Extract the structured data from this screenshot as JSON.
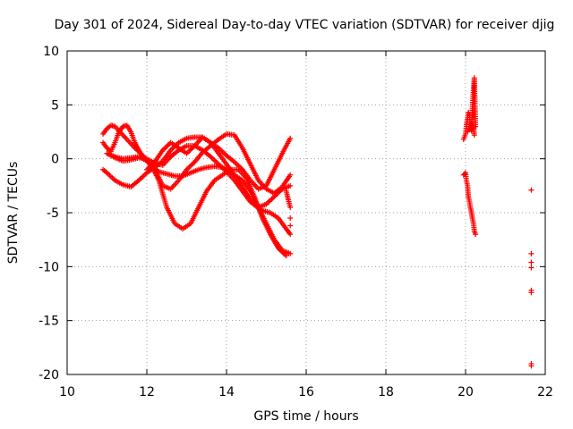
{
  "chart_data": {
    "type": "scatter",
    "title": "Day 301 of 2024, Sidereal Day-to-day VTEC variation (SDTVAR) for receiver djig",
    "xlabel": "GPS time / hours",
    "ylabel": "SDTVAR / TECUs",
    "xlim": [
      10,
      22
    ],
    "ylim": [
      -20,
      10
    ],
    "xticks": [
      10,
      12,
      14,
      16,
      18,
      20,
      22
    ],
    "yticks": [
      -20,
      -15,
      -10,
      -5,
      0,
      5,
      10
    ],
    "grid": true,
    "marker": "+",
    "color": "#ff0000",
    "series": [
      {
        "x": [
          10.9,
          11.0,
          11.1,
          11.2,
          11.3,
          11.5,
          11.7,
          11.9,
          12.1,
          12.3,
          12.5,
          12.7,
          12.9,
          13.1,
          13.3,
          13.5,
          13.7,
          13.9,
          14.1,
          14.3,
          14.5,
          14.7,
          14.9,
          15.1,
          15.3,
          15.5
        ],
        "y": [
          2.3,
          2.8,
          3.1,
          3.0,
          2.6,
          1.8,
          1.0,
          0.3,
          -0.5,
          -2.0,
          -4.5,
          -6.0,
          -6.5,
          -6.0,
          -4.5,
          -3.0,
          -2.0,
          -1.5,
          -1.0,
          -1.0,
          -1.8,
          -3.5,
          -5.5,
          -7.0,
          -8.3,
          -9.0
        ]
      },
      {
        "x": [
          10.9,
          11.0,
          11.1,
          11.2,
          11.3,
          11.4,
          11.5,
          11.6,
          11.7,
          11.8,
          11.9,
          12.1,
          12.3,
          12.5,
          12.7,
          12.9,
          13.1,
          13.3,
          13.5,
          13.7,
          13.9,
          14.1,
          14.3,
          14.5,
          14.7,
          14.9,
          15.1,
          15.3,
          15.5,
          15.6
        ],
        "y": [
          1.5,
          1.0,
          0.7,
          1.5,
          2.5,
          3.0,
          3.1,
          2.5,
          1.5,
          0.8,
          0.2,
          -0.6,
          -1.2,
          -1.4,
          -1.6,
          -1.6,
          -1.3,
          -1.0,
          -0.8,
          -0.7,
          -0.8,
          -1.2,
          -2.0,
          -3.2,
          -4.3,
          -4.8,
          -5.0,
          -5.5,
          -6.5,
          -7.0
        ]
      },
      {
        "x": [
          10.9,
          11.0,
          11.2,
          11.4,
          11.6,
          11.8,
          12.0,
          12.2,
          12.4,
          12.6,
          12.8,
          13.0,
          13.2,
          13.4,
          13.6,
          13.8,
          14.0,
          14.2,
          14.4,
          14.6,
          14.8,
          15.0,
          15.2,
          15.4,
          15.6
        ],
        "y": [
          -1.0,
          -1.3,
          -2.0,
          -2.4,
          -2.6,
          -2.0,
          -1.3,
          -0.8,
          -0.2,
          0.8,
          1.5,
          1.9,
          2.0,
          2.0,
          1.5,
          0.5,
          -0.5,
          -1.5,
          -2.0,
          -3.0,
          -4.5,
          -6.0,
          -7.5,
          -8.5,
          -8.8
        ]
      },
      {
        "x": [
          11.0,
          11.2,
          11.4,
          11.6,
          11.8,
          12.0,
          12.2,
          12.4,
          12.6,
          12.8,
          13.0,
          13.2,
          13.4,
          13.6,
          13.8,
          14.0,
          14.2,
          14.4,
          14.6,
          14.8,
          15.0,
          15.2,
          15.4,
          15.6
        ],
        "y": [
          0.5,
          0.2,
          0.0,
          0.1,
          0.2,
          -0.2,
          -1.0,
          -2.5,
          -2.8,
          -2.0,
          -1.0,
          -0.3,
          0.6,
          1.2,
          1.8,
          2.3,
          2.2,
          1.0,
          -0.5,
          -2.0,
          -2.8,
          -3.2,
          -2.6,
          -1.5
        ]
      },
      {
        "x": [
          12.0,
          12.2,
          12.4,
          12.6,
          12.8,
          13.0,
          13.2,
          13.4,
          13.6,
          13.8,
          14.0,
          14.2,
          14.4,
          14.6,
          14.8,
          15.0,
          15.2,
          15.4,
          15.6
        ],
        "y": [
          -1.0,
          -0.3,
          0.8,
          1.5,
          1.0,
          0.5,
          1.2,
          2.0,
          1.5,
          1.0,
          0.3,
          -0.3,
          -1.0,
          -2.0,
          -2.8,
          -2.5,
          -1.0,
          0.5,
          1.9
        ]
      },
      {
        "x": [
          11.0,
          11.2,
          11.4,
          11.6,
          11.8,
          12.0,
          12.2,
          12.4,
          12.6,
          12.8,
          13.0,
          13.2,
          13.4,
          13.6,
          13.8,
          14.0,
          14.2,
          14.4,
          14.6,
          14.8,
          15.0,
          15.2,
          15.4,
          15.6
        ],
        "y": [
          0.5,
          0.1,
          -0.2,
          -0.1,
          0.1,
          0.0,
          -0.4,
          -0.6,
          0.2,
          0.8,
          1.2,
          1.2,
          0.8,
          0.2,
          -0.5,
          -1.2,
          -2.0,
          -3.0,
          -4.0,
          -4.5,
          -4.2,
          -3.5,
          -2.8,
          -2.5
        ]
      },
      {
        "x": [
          15.5,
          15.55,
          15.6,
          15.6,
          15.6
        ],
        "y": [
          -3.0,
          -3.8,
          -4.5,
          -5.5,
          -6.2
        ]
      },
      {
        "x": [
          19.95,
          20.0,
          20.02,
          20.05,
          20.07,
          20.1,
          20.12,
          20.15,
          20.17,
          20.2,
          20.22,
          20.25
        ],
        "y": [
          1.8,
          2.3,
          3.0,
          3.8,
          4.3,
          4.0,
          3.3,
          3.0,
          4.5,
          6.5,
          7.5,
          3.0
        ]
      },
      {
        "x": [
          19.95,
          20.0,
          20.02,
          20.05,
          20.07,
          20.1,
          20.12,
          20.15,
          20.17,
          20.2,
          20.22,
          20.25
        ],
        "y": [
          -1.5,
          -1.3,
          -2.0,
          -2.5,
          -3.5,
          -4.0,
          -4.5,
          -5.0,
          -5.5,
          -6.0,
          -6.7,
          -7.0
        ]
      },
      {
        "x": [
          20.05,
          20.1,
          20.15,
          20.2,
          20.22
        ],
        "y": [
          2.5,
          3.0,
          2.6,
          3.2,
          2.2
        ]
      },
      {
        "x": [
          21.65,
          21.65,
          21.65,
          21.65,
          21.65,
          21.65,
          21.65,
          21.65
        ],
        "y": [
          -2.9,
          -8.8,
          -9.6,
          -10.1,
          -12.2,
          -12.4,
          -19.0,
          -19.2
        ]
      }
    ]
  }
}
